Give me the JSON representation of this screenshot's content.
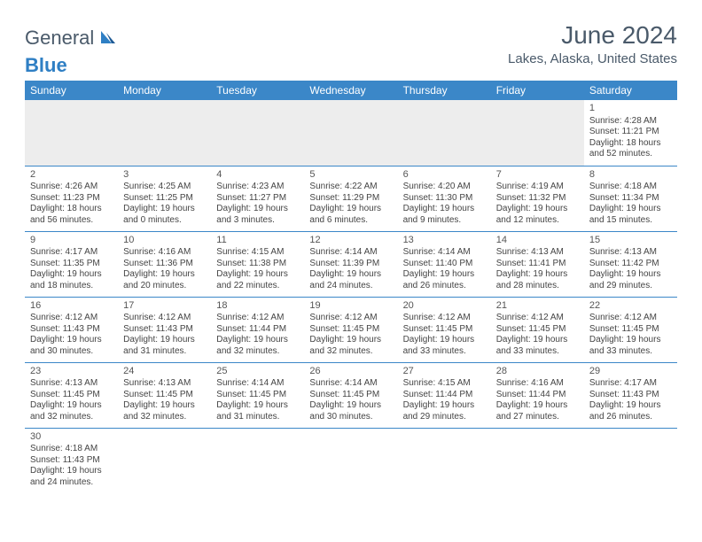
{
  "logo": {
    "general": "General",
    "blue": "Blue"
  },
  "title": {
    "month": "June 2024",
    "location": "Lakes, Alaska, United States"
  },
  "colors": {
    "header_bg": "#3b87c8",
    "header_text": "#ffffff",
    "body_text": "#444444",
    "title_text": "#4a5a6a",
    "logo_blue": "#2f7fc4",
    "empty_bg": "#ededed",
    "border": "#3b87c8"
  },
  "weekdays": [
    "Sunday",
    "Monday",
    "Tuesday",
    "Wednesday",
    "Thursday",
    "Friday",
    "Saturday"
  ],
  "weeks": [
    [
      null,
      null,
      null,
      null,
      null,
      null,
      {
        "d": "1",
        "sr": "4:28 AM",
        "ss": "11:21 PM",
        "dl": "18 hours and 52 minutes."
      }
    ],
    [
      {
        "d": "2",
        "sr": "4:26 AM",
        "ss": "11:23 PM",
        "dl": "18 hours and 56 minutes."
      },
      {
        "d": "3",
        "sr": "4:25 AM",
        "ss": "11:25 PM",
        "dl": "19 hours and 0 minutes."
      },
      {
        "d": "4",
        "sr": "4:23 AM",
        "ss": "11:27 PM",
        "dl": "19 hours and 3 minutes."
      },
      {
        "d": "5",
        "sr": "4:22 AM",
        "ss": "11:29 PM",
        "dl": "19 hours and 6 minutes."
      },
      {
        "d": "6",
        "sr": "4:20 AM",
        "ss": "11:30 PM",
        "dl": "19 hours and 9 minutes."
      },
      {
        "d": "7",
        "sr": "4:19 AM",
        "ss": "11:32 PM",
        "dl": "19 hours and 12 minutes."
      },
      {
        "d": "8",
        "sr": "4:18 AM",
        "ss": "11:34 PM",
        "dl": "19 hours and 15 minutes."
      }
    ],
    [
      {
        "d": "9",
        "sr": "4:17 AM",
        "ss": "11:35 PM",
        "dl": "19 hours and 18 minutes."
      },
      {
        "d": "10",
        "sr": "4:16 AM",
        "ss": "11:36 PM",
        "dl": "19 hours and 20 minutes."
      },
      {
        "d": "11",
        "sr": "4:15 AM",
        "ss": "11:38 PM",
        "dl": "19 hours and 22 minutes."
      },
      {
        "d": "12",
        "sr": "4:14 AM",
        "ss": "11:39 PM",
        "dl": "19 hours and 24 minutes."
      },
      {
        "d": "13",
        "sr": "4:14 AM",
        "ss": "11:40 PM",
        "dl": "19 hours and 26 minutes."
      },
      {
        "d": "14",
        "sr": "4:13 AM",
        "ss": "11:41 PM",
        "dl": "19 hours and 28 minutes."
      },
      {
        "d": "15",
        "sr": "4:13 AM",
        "ss": "11:42 PM",
        "dl": "19 hours and 29 minutes."
      }
    ],
    [
      {
        "d": "16",
        "sr": "4:12 AM",
        "ss": "11:43 PM",
        "dl": "19 hours and 30 minutes."
      },
      {
        "d": "17",
        "sr": "4:12 AM",
        "ss": "11:43 PM",
        "dl": "19 hours and 31 minutes."
      },
      {
        "d": "18",
        "sr": "4:12 AM",
        "ss": "11:44 PM",
        "dl": "19 hours and 32 minutes."
      },
      {
        "d": "19",
        "sr": "4:12 AM",
        "ss": "11:45 PM",
        "dl": "19 hours and 32 minutes."
      },
      {
        "d": "20",
        "sr": "4:12 AM",
        "ss": "11:45 PM",
        "dl": "19 hours and 33 minutes."
      },
      {
        "d": "21",
        "sr": "4:12 AM",
        "ss": "11:45 PM",
        "dl": "19 hours and 33 minutes."
      },
      {
        "d": "22",
        "sr": "4:12 AM",
        "ss": "11:45 PM",
        "dl": "19 hours and 33 minutes."
      }
    ],
    [
      {
        "d": "23",
        "sr": "4:13 AM",
        "ss": "11:45 PM",
        "dl": "19 hours and 32 minutes."
      },
      {
        "d": "24",
        "sr": "4:13 AM",
        "ss": "11:45 PM",
        "dl": "19 hours and 32 minutes."
      },
      {
        "d": "25",
        "sr": "4:14 AM",
        "ss": "11:45 PM",
        "dl": "19 hours and 31 minutes."
      },
      {
        "d": "26",
        "sr": "4:14 AM",
        "ss": "11:45 PM",
        "dl": "19 hours and 30 minutes."
      },
      {
        "d": "27",
        "sr": "4:15 AM",
        "ss": "11:44 PM",
        "dl": "19 hours and 29 minutes."
      },
      {
        "d": "28",
        "sr": "4:16 AM",
        "ss": "11:44 PM",
        "dl": "19 hours and 27 minutes."
      },
      {
        "d": "29",
        "sr": "4:17 AM",
        "ss": "11:43 PM",
        "dl": "19 hours and 26 minutes."
      }
    ],
    [
      {
        "d": "30",
        "sr": "4:18 AM",
        "ss": "11:43 PM",
        "dl": "19 hours and 24 minutes."
      },
      null,
      null,
      null,
      null,
      null,
      null
    ]
  ],
  "labels": {
    "sunrise": "Sunrise:",
    "sunset": "Sunset:",
    "daylight": "Daylight:"
  }
}
